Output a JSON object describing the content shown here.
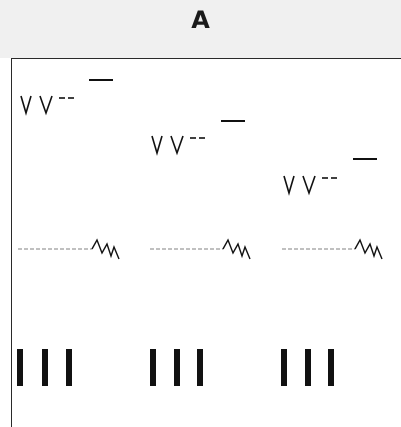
{
  "header": {
    "column_label": "A"
  },
  "groups": [
    {
      "id": "group-1"
    },
    {
      "id": "group-2"
    },
    {
      "id": "group-3"
    }
  ],
  "colors": {
    "ink": "#111111",
    "dashed": "#9a9a9a",
    "header_bg": "#f0f0f0",
    "border": "#2a2a2a"
  }
}
